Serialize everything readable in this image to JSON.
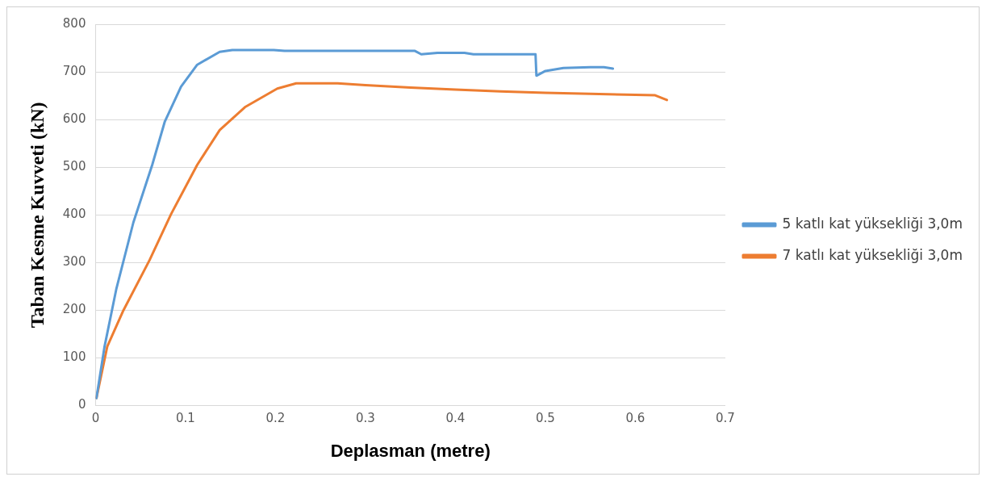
{
  "chart_data": {
    "type": "line",
    "xlabel": "Deplasman (metre)",
    "ylabel": "Taban Kesme Kuvveti (kN)",
    "xlim": [
      0,
      0.7
    ],
    "xticks": [
      0,
      0.1,
      0.2,
      0.3,
      0.4,
      0.5,
      0.6,
      0.7
    ],
    "ylim": [
      0,
      800
    ],
    "yticks": [
      0,
      100,
      200,
      300,
      400,
      500,
      600,
      700,
      800
    ],
    "grid": "y",
    "legend": "right",
    "marker": "none",
    "line_style": "solid",
    "series": [
      {
        "name": "5 katlı kat yüksekliği 3,0m",
        "color": "#5b9bd5",
        "x": [
          0.001,
          0.01,
          0.023,
          0.042,
          0.063,
          0.077,
          0.095,
          0.113,
          0.138,
          0.152,
          0.198,
          0.21,
          0.3,
          0.355,
          0.362,
          0.38,
          0.41,
          0.42,
          0.489,
          0.49,
          0.5,
          0.52,
          0.55,
          0.565,
          0.575
        ],
        "values": [
          16,
          124,
          244,
          384,
          505,
          596,
          669,
          715,
          742,
          746,
          746,
          744,
          744,
          744,
          737,
          740,
          740,
          737,
          737,
          692,
          702,
          708,
          710,
          710,
          707
        ]
      },
      {
        "name": "7 katlı kat yüksekliği 3,0m",
        "color": "#ed7d31",
        "x": [
          0.001,
          0.013,
          0.031,
          0.06,
          0.084,
          0.113,
          0.138,
          0.166,
          0.202,
          0.223,
          0.269,
          0.3,
          0.35,
          0.4,
          0.45,
          0.5,
          0.55,
          0.6,
          0.622,
          0.635
        ],
        "values": [
          16,
          124,
          200,
          305,
          402,
          505,
          578,
          626,
          665,
          676,
          676,
          672,
          667,
          663,
          659,
          656,
          654,
          652,
          651,
          641
        ]
      }
    ]
  }
}
